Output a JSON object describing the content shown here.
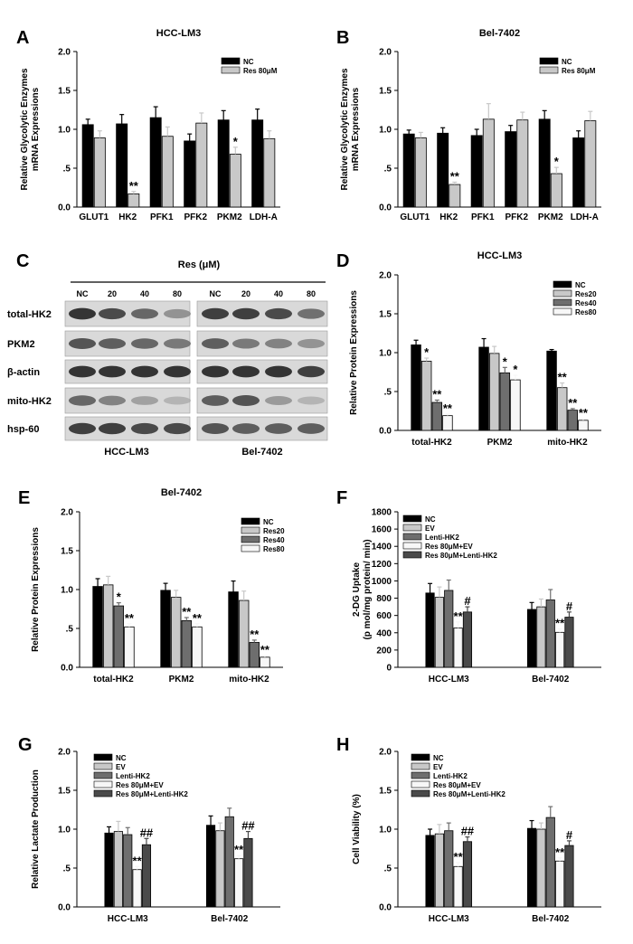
{
  "colors": {
    "NC": "#000000",
    "Res": "#c8c8c8",
    "Res20": "#c8c8c8",
    "Res40": "#6e6e6e",
    "Res80": "#f7f7f7",
    "EV": "#c8c8c8",
    "Lenti-HK2": "#6e6e6e",
    "Res80EV": "#f7f7f7",
    "Res80Lenti": "#4a4a4a"
  },
  "blot": {
    "label": "C",
    "header": "Res (μM)",
    "lanes": [
      "NC",
      "20",
      "40",
      "80",
      "NC",
      "20",
      "40",
      "80"
    ],
    "rows": [
      "total-HK2",
      "PKM2",
      "β-actin",
      "mito-HK2",
      "hsp-60"
    ],
    "cell_lines": [
      "HCC-LM3",
      "Bel-7402"
    ]
  },
  "chart_data": [
    {
      "id": "A",
      "type": "bar",
      "title": "HCC-LM3",
      "ylabel": "Relative Glycolytic Enzymes mRNA Expressions",
      "ylim": [
        0,
        2
      ],
      "yticks": [
        "0.0",
        ".5",
        "1.0",
        "1.5",
        "2.0"
      ],
      "categories": [
        "GLUT1",
        "HK2",
        "PFK1",
        "PFK2",
        "PKM2",
        "LDH-A"
      ],
      "legend": [
        "NC",
        "Res 80μM"
      ],
      "series": [
        {
          "name": "NC",
          "color": "#000000",
          "values": [
            1.06,
            1.07,
            1.15,
            0.85,
            1.12,
            1.12
          ],
          "errors": [
            0.07,
            0.12,
            0.14,
            0.09,
            0.12,
            0.14
          ]
        },
        {
          "name": "Res 80μM",
          "color": "#c8c8c8",
          "values": [
            0.89,
            0.17,
            0.91,
            1.08,
            0.68,
            0.88
          ],
          "errors": [
            0.09,
            0.03,
            0.12,
            0.13,
            0.09,
            0.1
          ]
        }
      ],
      "annotations": [
        {
          "cat": 1,
          "series": 1,
          "text": "**"
        },
        {
          "cat": 4,
          "series": 1,
          "text": "*"
        }
      ]
    },
    {
      "id": "B",
      "type": "bar",
      "title": "Bel-7402",
      "ylabel": "Relative Glycolytic Enzymes mRNA Expressions",
      "ylim": [
        0,
        2
      ],
      "yticks": [
        "0.0",
        ".5",
        "1.0",
        "1.5",
        "2.0"
      ],
      "categories": [
        "GLUT1",
        "HK2",
        "PFK1",
        "PFK2",
        "PKM2",
        "LDH-A"
      ],
      "legend": [
        "NC",
        "Res 80μM"
      ],
      "series": [
        {
          "name": "NC",
          "color": "#000000",
          "values": [
            0.94,
            0.95,
            0.92,
            0.97,
            1.13,
            0.89
          ],
          "errors": [
            0.05,
            0.07,
            0.08,
            0.08,
            0.11,
            0.09
          ],
          "tail": []
        },
        {
          "name": "Res 80μM",
          "color": "#c8c8c8",
          "values": [
            0.89,
            0.29,
            1.13,
            1.12,
            0.43,
            1.11
          ],
          "errors": [
            0.07,
            0.03,
            0.2,
            0.1,
            0.08,
            0.12
          ]
        }
      ],
      "annotations": [
        {
          "cat": 1,
          "series": 1,
          "text": "**"
        },
        {
          "cat": 4,
          "series": 1,
          "text": "*"
        }
      ]
    },
    {
      "id": "D",
      "type": "bar",
      "title": "HCC-LM3",
      "ylabel": "Relative Protein Expressions",
      "ylim": [
        0,
        2
      ],
      "yticks": [
        "0.0",
        ".5",
        "1.0",
        "1.5",
        "2.0"
      ],
      "categories": [
        "total-HK2",
        "PKM2",
        "mito-HK2"
      ],
      "legend": [
        "NC",
        "Res20",
        "Res40",
        "Res80"
      ],
      "series": [
        {
          "name": "NC",
          "color": "#000000",
          "values": [
            1.1,
            1.07,
            1.02
          ],
          "errors": [
            0.06,
            0.11,
            0.02
          ]
        },
        {
          "name": "Res20",
          "color": "#c8c8c8",
          "values": [
            0.89,
            0.99,
            0.55
          ],
          "errors": [
            0.04,
            0.09,
            0.06
          ]
        },
        {
          "name": "Res40",
          "color": "#6e6e6e",
          "values": [
            0.36,
            0.74,
            0.26
          ],
          "errors": [
            0.03,
            0.07,
            0.02
          ]
        },
        {
          "name": "Res80",
          "color": "#f7f7f7",
          "values": [
            0.19,
            0.65,
            0.13
          ],
          "errors": [
            0.02,
            0.06,
            0.02
          ]
        }
      ],
      "annotations": [
        {
          "cat": 0,
          "series": 1,
          "text": "*"
        },
        {
          "cat": 0,
          "series": 2,
          "text": "**"
        },
        {
          "cat": 0,
          "series": 3,
          "text": "**"
        },
        {
          "cat": 1,
          "series": 2,
          "text": "*"
        },
        {
          "cat": 1,
          "series": 3,
          "text": "*"
        },
        {
          "cat": 2,
          "series": 1,
          "text": "**"
        },
        {
          "cat": 2,
          "series": 2,
          "text": "**"
        },
        {
          "cat": 2,
          "series": 3,
          "text": "**"
        }
      ]
    },
    {
      "id": "E",
      "type": "bar",
      "title": "Bel-7402",
      "ylabel": "Relative Protein Expressions",
      "ylim": [
        0,
        2
      ],
      "yticks": [
        "0.0",
        ".5",
        "1.0",
        "1.5",
        "2.0"
      ],
      "categories": [
        "total-HK2",
        "PKM2",
        "mito-HK2"
      ],
      "legend": [
        "NC",
        "Res20",
        "Res40",
        "Res80"
      ],
      "series": [
        {
          "name": "NC",
          "color": "#000000",
          "values": [
            1.04,
            0.99,
            0.97
          ],
          "errors": [
            0.1,
            0.09,
            0.14
          ]
        },
        {
          "name": "Res20",
          "color": "#c8c8c8",
          "values": [
            1.06,
            0.9,
            0.86
          ],
          "errors": [
            0.11,
            0.09,
            0.12
          ]
        },
        {
          "name": "Res40",
          "color": "#6e6e6e",
          "values": [
            0.79,
            0.6,
            0.32
          ],
          "errors": [
            0.04,
            0.04,
            0.03
          ]
        },
        {
          "name": "Res80",
          "color": "#f7f7f7",
          "values": [
            0.52,
            0.52,
            0.13
          ],
          "errors": [
            0.04,
            0.04,
            0.02
          ]
        }
      ],
      "annotations": [
        {
          "cat": 0,
          "series": 2,
          "text": "*"
        },
        {
          "cat": 0,
          "series": 3,
          "text": "**"
        },
        {
          "cat": 1,
          "series": 2,
          "text": "**"
        },
        {
          "cat": 1,
          "series": 3,
          "text": "**"
        },
        {
          "cat": 2,
          "series": 2,
          "text": "**"
        },
        {
          "cat": 2,
          "series": 3,
          "text": "**"
        }
      ]
    },
    {
      "id": "F",
      "type": "bar",
      "title": "",
      "ylabel": "2-DG Uptake (p mol/mg protein/ min)",
      "ylim": [
        0,
        1800
      ],
      "yticks": [
        "0",
        "200",
        "400",
        "600",
        "800",
        "1000",
        "1200",
        "1400",
        "1600",
        "1800"
      ],
      "categories": [
        "HCC-LM3",
        "Bel-7402"
      ],
      "legend": [
        "NC",
        "EV",
        "Lenti-HK2",
        "Res 80μM+EV",
        "Res 80μM+Lenti-HK2"
      ],
      "series": [
        {
          "name": "NC",
          "color": "#000000",
          "values": [
            860,
            670
          ],
          "errors": [
            110,
            80
          ]
        },
        {
          "name": "EV",
          "color": "#c8c8c8",
          "values": [
            810,
            700
          ],
          "errors": [
            120,
            90
          ]
        },
        {
          "name": "Lenti-HK2",
          "color": "#6e6e6e",
          "values": [
            890,
            780
          ],
          "errors": [
            120,
            120
          ]
        },
        {
          "name": "Res 80μM+EV",
          "color": "#f7f7f7",
          "values": [
            455,
            405
          ],
          "errors": [
            70,
            40
          ]
        },
        {
          "name": "Res 80μM+Lenti-HK2",
          "color": "#4a4a4a",
          "values": [
            640,
            580
          ],
          "errors": [
            60,
            60
          ]
        }
      ],
      "annotations": [
        {
          "cat": 0,
          "series": 3,
          "text": "**"
        },
        {
          "cat": 0,
          "series": 4,
          "text": "#"
        },
        {
          "cat": 1,
          "series": 3,
          "text": "**"
        },
        {
          "cat": 1,
          "series": 4,
          "text": "#"
        }
      ]
    },
    {
      "id": "G",
      "type": "bar",
      "title": "",
      "ylabel": "Relative Lactate Production",
      "ylim": [
        0,
        2
      ],
      "yticks": [
        "0.0",
        ".5",
        "1.0",
        "1.5",
        "2.0"
      ],
      "categories": [
        "HCC-LM3",
        "Bel-7402"
      ],
      "legend": [
        "NC",
        "EV",
        "Lenti-HK2",
        "Res 80μM+EV",
        "Res 80μM+Lenti-HK2"
      ],
      "series": [
        {
          "name": "NC",
          "color": "#000000",
          "values": [
            0.95,
            1.05
          ],
          "errors": [
            0.08,
            0.12
          ]
        },
        {
          "name": "EV",
          "color": "#c8c8c8",
          "values": [
            0.97,
            0.98
          ],
          "errors": [
            0.13,
            0.1
          ]
        },
        {
          "name": "Lenti-HK2",
          "color": "#6e6e6e",
          "values": [
            0.93,
            1.16
          ],
          "errors": [
            0.09,
            0.11
          ]
        },
        {
          "name": "Res 80μM+EV",
          "color": "#f7f7f7",
          "values": [
            0.48,
            0.62
          ],
          "errors": [
            0.04,
            0.04
          ]
        },
        {
          "name": "Res 80μM+Lenti-HK2",
          "color": "#4a4a4a",
          "values": [
            0.8,
            0.88
          ],
          "errors": [
            0.08,
            0.09
          ]
        }
      ],
      "annotations": [
        {
          "cat": 0,
          "series": 3,
          "text": "**"
        },
        {
          "cat": 0,
          "series": 4,
          "text": "##"
        },
        {
          "cat": 1,
          "series": 3,
          "text": "**"
        },
        {
          "cat": 1,
          "series": 4,
          "text": "##"
        }
      ]
    },
    {
      "id": "H",
      "type": "bar",
      "title": "",
      "ylabel": "Cell Viability (%)",
      "ylim": [
        0,
        2
      ],
      "yticks": [
        "0.0",
        ".5",
        "1.0",
        "1.5",
        "2.0"
      ],
      "categories": [
        "HCC-LM3",
        "Bel-7402"
      ],
      "legend": [
        "NC",
        "EV",
        "Lenti-HK2",
        "Res 80μM+EV",
        "Res 80μM+Lenti-HK2"
      ],
      "series": [
        {
          "name": "NC",
          "color": "#000000",
          "values": [
            0.92,
            1.01
          ],
          "errors": [
            0.08,
            0.1
          ]
        },
        {
          "name": "EV",
          "color": "#c8c8c8",
          "values": [
            0.94,
            1.0
          ],
          "errors": [
            0.12,
            0.08
          ]
        },
        {
          "name": "Lenti-HK2",
          "color": "#6e6e6e",
          "values": [
            0.98,
            1.15
          ],
          "errors": [
            0.1,
            0.14
          ]
        },
        {
          "name": "Res 80μM+EV",
          "color": "#f7f7f7",
          "values": [
            0.52,
            0.59
          ],
          "errors": [
            0.05,
            0.04
          ]
        },
        {
          "name": "Res 80μM+Lenti-HK2",
          "color": "#4a4a4a",
          "values": [
            0.84,
            0.79
          ],
          "errors": [
            0.06,
            0.06
          ]
        }
      ],
      "annotations": [
        {
          "cat": 0,
          "series": 3,
          "text": "**"
        },
        {
          "cat": 0,
          "series": 4,
          "text": "##"
        },
        {
          "cat": 1,
          "series": 3,
          "text": "**"
        },
        {
          "cat": 1,
          "series": 4,
          "text": "#"
        }
      ]
    }
  ]
}
